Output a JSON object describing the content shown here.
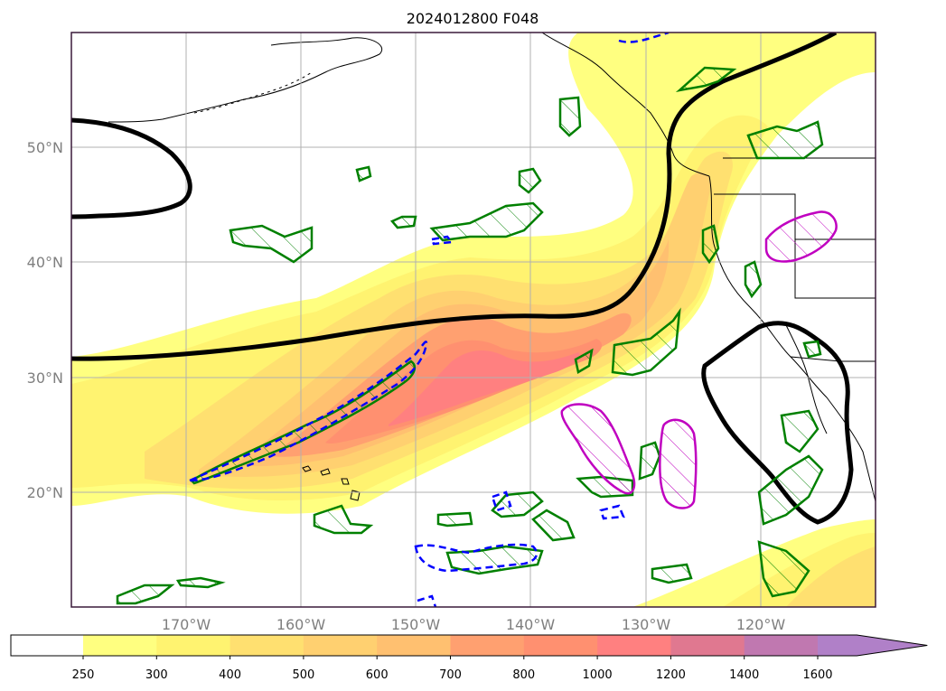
{
  "title": "2024012800 F048",
  "map": {
    "lon_range": [
      -180,
      -110
    ],
    "lat_range": [
      10,
      60
    ],
    "lon_ticks": [
      {
        "value": -170,
        "label": "170°W"
      },
      {
        "value": -160,
        "label": "160°W"
      },
      {
        "value": -150,
        "label": "150°W"
      },
      {
        "value": -140,
        "label": "140°W"
      },
      {
        "value": -130,
        "label": "130°W"
      },
      {
        "value": -120,
        "label": "120°W"
      }
    ],
    "lat_ticks": [
      {
        "value": 50,
        "label": "50°N"
      },
      {
        "value": 40,
        "label": "40°N"
      },
      {
        "value": 30,
        "label": "30°N"
      },
      {
        "value": 20,
        "label": "20°N"
      }
    ],
    "grid": true
  },
  "colorbar": {
    "levels": [
      250,
      300,
      400,
      500,
      600,
      700,
      800,
      1000,
      1200,
      1400,
      1600
    ],
    "labels": [
      "250",
      "300",
      "400",
      "500",
      "600",
      "700",
      "800",
      "1000",
      "1200",
      "1400",
      "1600"
    ],
    "colors": [
      "#ffff80",
      "#fff370",
      "#ffe070",
      "#ffd070",
      "#ffc070",
      "#ffa070",
      "#ff9070",
      "#ff8080",
      "#e07890",
      "#c078b0",
      "#b080c8",
      "#a878c8"
    ],
    "extend": "max"
  },
  "colors": {
    "contour_black": "#000000",
    "contour_green": "#008000",
    "contour_blue": "#0000ff",
    "contour_magenta": "#c000c0",
    "coastline": "#000000",
    "grid": "#b0b0b0",
    "tick_label": "#7f7f7f"
  }
}
